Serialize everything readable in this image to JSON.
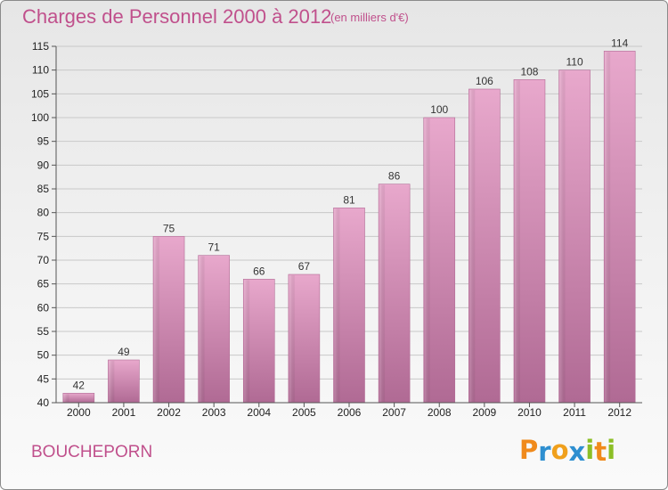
{
  "chart_data": {
    "type": "bar",
    "title": "Charges de Personnel 2000 à 2012",
    "subtitle": "(en milliers d'€)",
    "categories": [
      "2000",
      "2001",
      "2002",
      "2003",
      "2004",
      "2005",
      "2006",
      "2007",
      "2008",
      "2009",
      "2010",
      "2011",
      "2012"
    ],
    "values": [
      42,
      49,
      75,
      71,
      66,
      67,
      81,
      86,
      100,
      106,
      108,
      110,
      114
    ],
    "ylim": [
      40,
      115
    ],
    "yticks": [
      40,
      45,
      50,
      55,
      60,
      65,
      70,
      75,
      80,
      85,
      90,
      95,
      100,
      105,
      110,
      115
    ],
    "grid": true,
    "bar_color": "#d78cb4"
  },
  "place_name": "BOUCHEPORN",
  "logo": {
    "text": "Proxiti",
    "letters": [
      {
        "ch": "P",
        "color": "#f08a1c"
      },
      {
        "ch": "r",
        "color": "#2e8fd0"
      },
      {
        "ch": "o",
        "color": "#f0a01c"
      },
      {
        "ch": "x",
        "color": "#2e8fd0"
      },
      {
        "ch": "i",
        "color": "#8cbf26"
      },
      {
        "ch": "t",
        "color": "#f08a1c"
      },
      {
        "ch": "i",
        "color": "#8cbf26"
      }
    ]
  }
}
